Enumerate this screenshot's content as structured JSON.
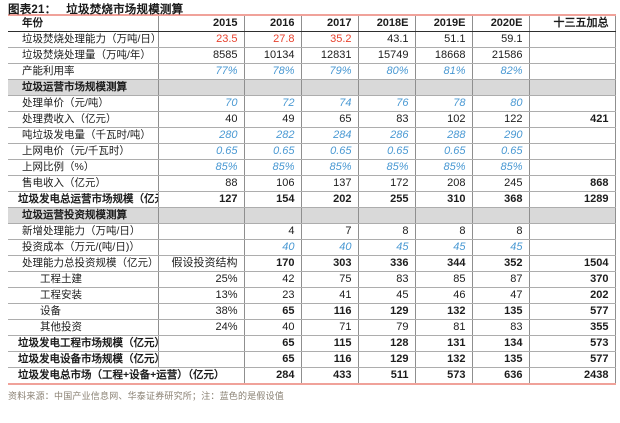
{
  "colors": {
    "accent_line": "#f0a29a",
    "assumption_blue": "#4a99d3",
    "highlight_red": "#e8432f",
    "section_bg": "#d9d9d9",
    "grid_line": "#8f8f8f"
  },
  "chart_data": {
    "type": "table",
    "title_prefix": "图表21：",
    "title": "垃圾焚烧市场规模测算",
    "source_note": "资料来源：中国产业信息网、华泰证券研究所；注：蓝色的是假设值",
    "columns": [
      "年份",
      "2015",
      "2016",
      "2017",
      "2018E",
      "2019E",
      "2020E",
      "十三五加总"
    ],
    "rows": [
      {
        "label": "垃圾焚烧处理能力（万吨/日）",
        "cells": [
          "23.5",
          "27.8",
          "35.2",
          "43.1",
          "51.1",
          "59.1",
          ""
        ],
        "cls": [
          "red",
          "red",
          "red",
          "",
          "",
          "",
          ""
        ]
      },
      {
        "label": "垃圾焚烧处理量（万吨/年）",
        "cells": [
          "8585",
          "10134",
          "12831",
          "15749",
          "18668",
          "21586",
          ""
        ]
      },
      {
        "label": "产能利用率",
        "cells": [
          "77%",
          "78%",
          "79%",
          "80%",
          "81%",
          "82%",
          ""
        ],
        "cls": [
          "blue",
          "blue",
          "blue",
          "blue",
          "blue",
          "blue",
          ""
        ]
      },
      {
        "section": "垃圾运营市场规模测算"
      },
      {
        "label": "处理单价（元/吨）",
        "cells": [
          "70",
          "72",
          "74",
          "76",
          "78",
          "80",
          ""
        ],
        "cls": [
          "blue",
          "blue",
          "blue",
          "blue",
          "blue",
          "blue",
          ""
        ]
      },
      {
        "label": "处理费收入（亿元）",
        "cells": [
          "40",
          "49",
          "65",
          "83",
          "102",
          "122",
          "421"
        ],
        "cls": [
          "",
          "",
          "",
          "",
          "",
          "",
          "bold"
        ]
      },
      {
        "label": "吨垃圾发电量（千瓦时/吨）",
        "cells": [
          "280",
          "282",
          "284",
          "286",
          "288",
          "290",
          ""
        ],
        "cls": [
          "blue",
          "blue",
          "blue",
          "blue",
          "blue",
          "blue",
          ""
        ]
      },
      {
        "label": "上网电价（元/千瓦时）",
        "cells": [
          "0.65",
          "0.65",
          "0.65",
          "0.65",
          "0.65",
          "0.65",
          ""
        ],
        "cls": [
          "blue",
          "blue",
          "blue",
          "blue",
          "blue",
          "blue",
          ""
        ]
      },
      {
        "label": "上网比例（%）",
        "cells": [
          "85%",
          "85%",
          "85%",
          "85%",
          "85%",
          "85%",
          ""
        ],
        "cls": [
          "blue",
          "blue",
          "blue",
          "blue",
          "blue",
          "blue",
          ""
        ]
      },
      {
        "label": "售电收入（亿元）",
        "cells": [
          "88",
          "106",
          "137",
          "172",
          "208",
          "245",
          "868"
        ],
        "cls": [
          "",
          "",
          "",
          "",
          "",
          "",
          "bold"
        ]
      },
      {
        "label": "垃圾发电总运营市场规模（亿元）",
        "row": "total",
        "cells": [
          "127",
          "154",
          "202",
          "255",
          "310",
          "368",
          "1289"
        ]
      },
      {
        "section": "垃圾运营投资规模测算"
      },
      {
        "label": "新增处理能力（万吨/日）",
        "cells": [
          "",
          "4",
          "7",
          "8",
          "8",
          "8",
          ""
        ]
      },
      {
        "label": "投资成本（万元/(吨/日)）",
        "cells": [
          "",
          "40",
          "40",
          "45",
          "45",
          "45",
          ""
        ],
        "cls": [
          "",
          "blue",
          "blue",
          "blue",
          "blue",
          "blue",
          ""
        ]
      },
      {
        "label": "处理能力总投资规模（亿元）",
        "cells": [
          "假设投资结构",
          "170",
          "303",
          "336",
          "344",
          "352",
          "1504"
        ],
        "cls": [
          "plain",
          "bold",
          "bold",
          "bold",
          "bold",
          "bold",
          "bold"
        ]
      },
      {
        "label": "工程土建",
        "row": "indent",
        "cells": [
          "25%",
          "42",
          "75",
          "83",
          "85",
          "87",
          "370"
        ],
        "cls": [
          "",
          "",
          "",
          "",
          "",
          "",
          "bold"
        ]
      },
      {
        "label": "工程安装",
        "row": "indent",
        "cells": [
          "13%",
          "23",
          "41",
          "45",
          "46",
          "47",
          "202"
        ],
        "cls": [
          "",
          "",
          "",
          "",
          "",
          "",
          "bold"
        ]
      },
      {
        "label": "设备",
        "row": "indent",
        "cells": [
          "38%",
          "65",
          "116",
          "129",
          "132",
          "135",
          "577"
        ],
        "cls": [
          "",
          "bold",
          "bold",
          "bold",
          "bold",
          "bold",
          "bold"
        ]
      },
      {
        "label": "其他投资",
        "row": "indent",
        "cells": [
          "24%",
          "40",
          "71",
          "79",
          "81",
          "83",
          "355"
        ],
        "cls": [
          "",
          "",
          "",
          "",
          "",
          "",
          "bold"
        ]
      },
      {
        "label": "垃圾发电工程市场规模（亿元）",
        "row": "total",
        "cells": [
          "",
          "65",
          "115",
          "128",
          "131",
          "134",
          "573"
        ]
      },
      {
        "label": "垃圾发电设备市场规模（亿元）",
        "row": "total",
        "cells": [
          "",
          "65",
          "116",
          "129",
          "132",
          "135",
          "577"
        ]
      },
      {
        "label": "垃圾发电总市场（工程+设备+运营）（亿元）",
        "row": "total",
        "labelSpan": 2,
        "cells": [
          "284",
          "433",
          "511",
          "573",
          "636",
          "2438"
        ]
      }
    ]
  }
}
